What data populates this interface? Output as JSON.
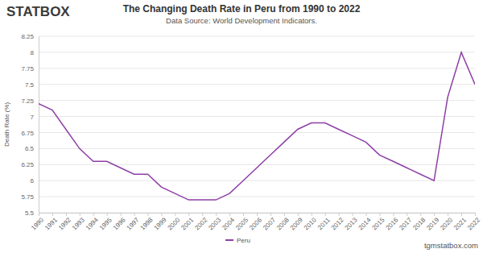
{
  "chart_data": {
    "type": "line",
    "title": "The Changing Death Rate in Peru from 1990 to 2022",
    "subtitle": "Data Source: World Development Indicators.",
    "logo_text": "STATBOX",
    "footer": "tgmstatbox.com",
    "y_label": "Death Rate (%)",
    "categories": [
      "1990",
      "1991",
      "1992",
      "1993",
      "1994",
      "1995",
      "1996",
      "1997",
      "1998",
      "1999",
      "2000",
      "2001",
      "2002",
      "2003",
      "2004",
      "2005",
      "2006",
      "2007",
      "2008",
      "2009",
      "2010",
      "2011",
      "2012",
      "2013",
      "2014",
      "2015",
      "2016",
      "2017",
      "2018",
      "2019",
      "2020",
      "2021",
      "2022"
    ],
    "series": [
      {
        "name": "Peru",
        "color": "#8e3fa6",
        "values": [
          7.2,
          7.1,
          6.8,
          6.5,
          6.3,
          6.3,
          6.2,
          6.1,
          6.1,
          5.9,
          5.8,
          5.7,
          5.7,
          5.7,
          5.8,
          6.0,
          6.2,
          6.4,
          6.6,
          6.8,
          6.9,
          6.9,
          6.8,
          6.7,
          6.6,
          6.4,
          6.3,
          6.2,
          6.1,
          6.0,
          7.3,
          8.0,
          7.5
        ]
      }
    ],
    "ylim": [
      5.5,
      8.25
    ],
    "yticks": [
      5.5,
      5.75,
      6,
      6.25,
      6.5,
      6.75,
      7,
      7.25,
      7.5,
      7.75,
      8,
      8.25
    ],
    "grid": true,
    "legend": "bottom"
  }
}
